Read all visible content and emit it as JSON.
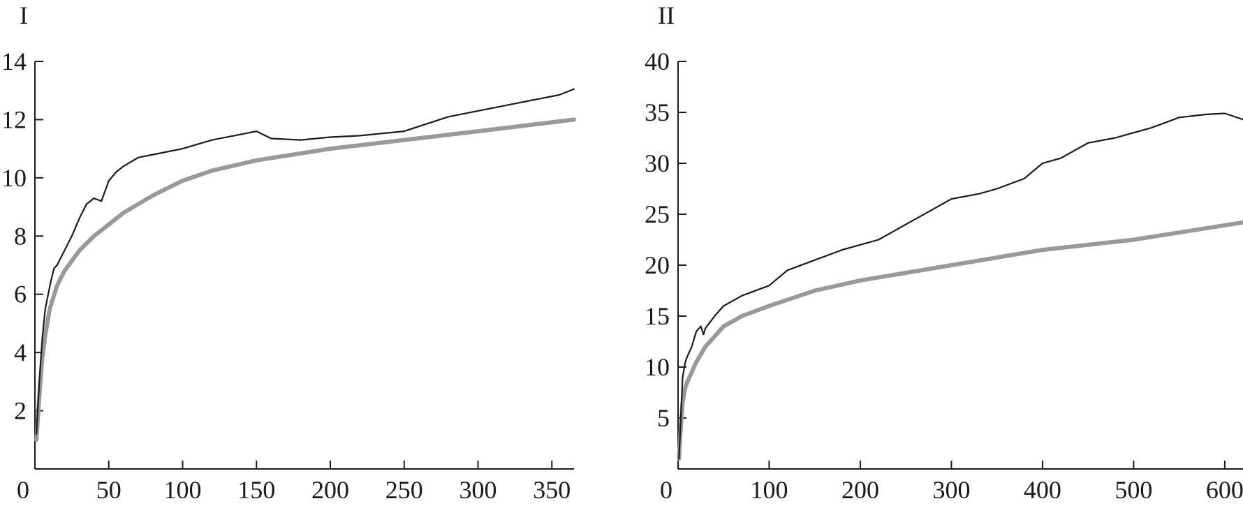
{
  "chart_data": [
    {
      "type": "line",
      "title": "I",
      "xlabel": "",
      "ylabel": "",
      "xlim": [
        0,
        365
      ],
      "ylim": [
        0,
        14
      ],
      "x_ticks": [
        "0",
        "50",
        "100",
        "150",
        "200",
        "250",
        "300",
        "350"
      ],
      "y_ticks": [
        "2",
        "4",
        "6",
        "8",
        "10",
        "12",
        "14"
      ],
      "grid": false,
      "series": [
        {
          "color": "#1a1a1a",
          "x": [
            1,
            3,
            5,
            7,
            9,
            11,
            13,
            15,
            20,
            25,
            30,
            35,
            40,
            45,
            50,
            55,
            60,
            70,
            80,
            100,
            120,
            140,
            150,
            160,
            180,
            200,
            220,
            250,
            280,
            300,
            320,
            340,
            355,
            365
          ],
          "y": [
            1.2,
            3.0,
            4.5,
            5.5,
            6.0,
            6.5,
            6.9,
            7.0,
            7.5,
            8.0,
            8.6,
            9.1,
            9.3,
            9.2,
            9.9,
            10.2,
            10.4,
            10.7,
            10.8,
            11.0,
            11.3,
            11.5,
            11.6,
            11.35,
            11.3,
            11.4,
            11.45,
            11.6,
            12.1,
            12.3,
            12.5,
            12.7,
            12.85,
            13.05
          ]
        },
        {
          "color": "#999999",
          "x": [
            1,
            3,
            5,
            7,
            10,
            15,
            20,
            30,
            40,
            50,
            60,
            80,
            100,
            120,
            150,
            200,
            250,
            300,
            365
          ],
          "y": [
            1.0,
            2.5,
            3.8,
            4.6,
            5.5,
            6.3,
            6.8,
            7.5,
            8.0,
            8.4,
            8.8,
            9.4,
            9.9,
            10.25,
            10.6,
            11.0,
            11.3,
            11.6,
            12.0
          ]
        }
      ]
    },
    {
      "type": "line",
      "title": "II",
      "xlabel": "",
      "ylabel": "",
      "xlim": [
        0,
        620
      ],
      "ylim": [
        0,
        40
      ],
      "x_ticks": [
        "0",
        "100",
        "200",
        "300",
        "400",
        "500",
        "600"
      ],
      "y_ticks": [
        "5",
        "10",
        "15",
        "20",
        "25",
        "30",
        "35",
        "40"
      ],
      "grid": false,
      "series": [
        {
          "color": "#1a1a1a",
          "x": [
            1,
            3,
            5,
            8,
            10,
            15,
            20,
            25,
            28,
            30,
            35,
            40,
            50,
            70,
            100,
            120,
            150,
            180,
            200,
            220,
            250,
            280,
            300,
            330,
            350,
            380,
            400,
            420,
            450,
            480,
            500,
            520,
            550,
            580,
            600,
            620
          ],
          "y": [
            1,
            5,
            9,
            10.5,
            11,
            12,
            13.5,
            14,
            13.2,
            13.8,
            14.4,
            15,
            16,
            17,
            18,
            19.5,
            20.5,
            21.5,
            22,
            22.5,
            24,
            25.5,
            26.5,
            27,
            27.5,
            28.5,
            30,
            30.5,
            32,
            32.5,
            33,
            33.5,
            34.5,
            34.8,
            34.9,
            34.3
          ]
        },
        {
          "color": "#999999",
          "x": [
            1,
            3,
            5,
            8,
            10,
            15,
            20,
            30,
            40,
            50,
            70,
            100,
            150,
            200,
            300,
            400,
            500,
            620
          ],
          "y": [
            1,
            4,
            6.5,
            8,
            8.5,
            9.5,
            10.5,
            12,
            13,
            14,
            15,
            16,
            17.5,
            18.5,
            20,
            21.5,
            22.5,
            24.2
          ]
        }
      ]
    }
  ]
}
